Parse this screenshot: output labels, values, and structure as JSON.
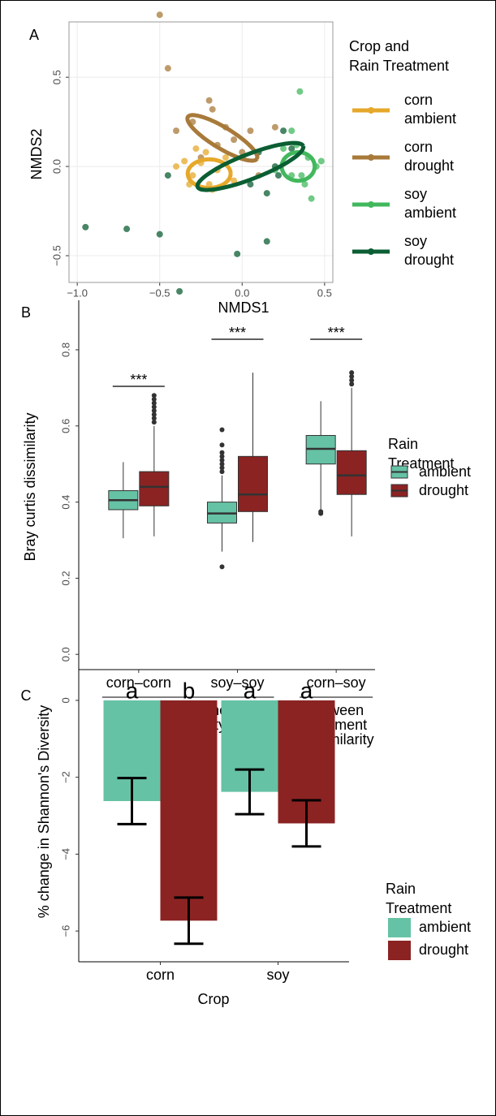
{
  "chart_data": [
    {
      "type": "scatter",
      "panel": "A",
      "xlabel": "NMDS1",
      "ylabel": "NMDS2",
      "xlim": [
        -1.05,
        0.55
      ],
      "ylim": [
        -0.65,
        0.81
      ],
      "xticks": [
        {
          "value": -1.0,
          "label": "−1.0"
        },
        {
          "value": -0.5,
          "label": "−0.5"
        },
        {
          "value": 0.0,
          "label": "0.0"
        },
        {
          "value": 0.5,
          "label": "0.5"
        }
      ],
      "yticks": [
        {
          "value": -0.5,
          "label": "−0.5"
        },
        {
          "value": 0.0,
          "label": "0.0"
        },
        {
          "value": 0.5,
          "label": "0.5"
        }
      ],
      "grid": true,
      "legend_title": [
        "Crop and",
        "Rain Treatment"
      ],
      "series": [
        {
          "name": [
            "corn",
            "ambient"
          ],
          "color": "#e6a82a",
          "x": [
            -0.25,
            -0.3,
            -0.2,
            -0.15,
            -0.28,
            -0.35,
            -0.18,
            -0.1,
            -0.22,
            -0.32,
            -0.05,
            -0.4
          ],
          "y": [
            0.02,
            -0.05,
            -0.1,
            -0.02,
            0.1,
            0.03,
            -0.13,
            0.05,
            0.08,
            -0.1,
            -0.08,
            0.0
          ],
          "ellipse": {
            "cx": -0.2,
            "cy": -0.04,
            "a": 0.13,
            "b": 0.08,
            "angle": 0
          }
        },
        {
          "name": [
            "corn",
            "drought"
          ],
          "color": "#a87a3a",
          "x": [
            -0.5,
            -0.45,
            -0.2,
            -0.18,
            -0.3,
            -0.1,
            -0.05,
            0.0,
            -0.4,
            -0.15,
            0.2,
            0.05,
            -0.25,
            0.1
          ],
          "y": [
            0.85,
            0.55,
            0.37,
            0.32,
            0.25,
            0.22,
            0.15,
            0.08,
            0.2,
            0.12,
            0.22,
            0.2,
            0.05,
            -0.05
          ],
          "ellipse": {
            "cx": -0.12,
            "cy": 0.16,
            "a": 0.24,
            "b": 0.06,
            "angle": -29
          }
        },
        {
          "name": [
            "soy",
            "ambient"
          ],
          "color": "#41b85d",
          "x": [
            0.35,
            0.3,
            0.4,
            0.45,
            0.38,
            0.3,
            0.42,
            0.25,
            0.48,
            0.33,
            0.36,
            0.2
          ],
          "y": [
            0.42,
            0.2,
            0.05,
            0.0,
            -0.1,
            -0.05,
            -0.18,
            0.1,
            0.03,
            0.12,
            -0.05,
            -0.02
          ],
          "ellipse": {
            "cx": 0.34,
            "cy": 0.0,
            "a": 0.1,
            "b": 0.08,
            "angle": 0
          }
        },
        {
          "name": [
            "soy",
            "drought"
          ],
          "color": "#0b5e33",
          "x": [
            -0.95,
            -0.7,
            -0.5,
            -0.38,
            -0.03,
            0.15,
            -0.45,
            0.1,
            0.2,
            0.05,
            0.25,
            0.15,
            0.22,
            0.0,
            0.3
          ],
          "y": [
            -0.34,
            -0.35,
            -0.38,
            -0.7,
            -0.49,
            -0.42,
            -0.05,
            0.08,
            0.0,
            -0.1,
            0.2,
            -0.15,
            -0.05,
            0.05,
            0.1
          ],
          "ellipse": {
            "cx": 0.05,
            "cy": 0.0,
            "a": 0.34,
            "b": 0.07,
            "angle": 19.6
          }
        }
      ]
    },
    {
      "type": "box",
      "panel": "B",
      "ylabel": "Bray curtis dissimilarity",
      "categories": [
        "corn–corn",
        "soy–soy",
        "corn–soy"
      ],
      "x_groups": [
        [
          "within treatment",
          "dissimilarity"
        ],
        [
          "between",
          "treatment",
          "dissimilarity"
        ]
      ],
      "significance": [
        "***",
        "***",
        "***"
      ],
      "ylim": [
        -0.04,
        0.93
      ],
      "yticks": [
        {
          "value": 0.0,
          "label": "0.0"
        },
        {
          "value": 0.2,
          "label": "0.2"
        },
        {
          "value": 0.4,
          "label": "0.4"
        },
        {
          "value": 0.6,
          "label": "0.6"
        },
        {
          "value": 0.8,
          "label": "0.8"
        }
      ],
      "legend_title": [
        "Rain",
        "Treatment"
      ],
      "series": [
        {
          "name": "ambient",
          "color": "#66c2a5",
          "stats": [
            {
              "min": 0.305,
              "q1": 0.38,
              "median": 0.405,
              "q3": 0.43,
              "max": 0.505,
              "outliers": []
            },
            {
              "min": 0.27,
              "q1": 0.345,
              "median": 0.37,
              "q3": 0.4,
              "max": 0.47,
              "outliers": [
                0.23,
                0.48,
                0.49,
                0.5,
                0.51,
                0.52,
                0.53,
                0.55,
                0.59
              ]
            },
            {
              "min": 0.38,
              "q1": 0.5,
              "median": 0.54,
              "q3": 0.575,
              "max": 0.665,
              "outliers": [
                0.37,
                0.375
              ]
            }
          ]
        },
        {
          "name": "drought",
          "color": "#8b2323",
          "stats": [
            {
              "min": 0.31,
              "q1": 0.39,
              "median": 0.44,
              "q3": 0.48,
              "max": 0.6,
              "outliers": [
                0.61,
                0.62,
                0.63,
                0.64,
                0.65,
                0.66,
                0.67,
                0.68
              ]
            },
            {
              "min": 0.295,
              "q1": 0.375,
              "median": 0.42,
              "q3": 0.52,
              "max": 0.74,
              "outliers": []
            },
            {
              "min": 0.31,
              "q1": 0.42,
              "median": 0.47,
              "q3": 0.535,
              "max": 0.7,
              "outliers": [
                0.71,
                0.72,
                0.73,
                0.74
              ]
            }
          ]
        }
      ]
    },
    {
      "type": "bar",
      "panel": "C",
      "xlabel": "Crop",
      "ylabel": "% change in Shannon's Diversity",
      "categories": [
        "corn",
        "soy"
      ],
      "ylim": [
        -6.8,
        0.8
      ],
      "yticks": [
        0,
        {
          "value": -2,
          "label": "−2"
        },
        {
          "value": -4,
          "label": "−4"
        },
        {
          "value": -6,
          "label": "−6"
        }
      ],
      "legend_title": [
        "Rain",
        "Treatment"
      ],
      "series": [
        {
          "name": "ambient",
          "color": "#66c2a5",
          "values": [
            -2.62,
            -2.38
          ],
          "errors": [
            0.6,
            0.58
          ],
          "letters": [
            "a",
            "a"
          ]
        },
        {
          "name": "drought",
          "color": "#8b2323",
          "values": [
            -5.73,
            -3.2
          ],
          "errors": [
            0.6,
            0.6
          ],
          "letters": [
            "b",
            "a"
          ]
        }
      ]
    }
  ]
}
